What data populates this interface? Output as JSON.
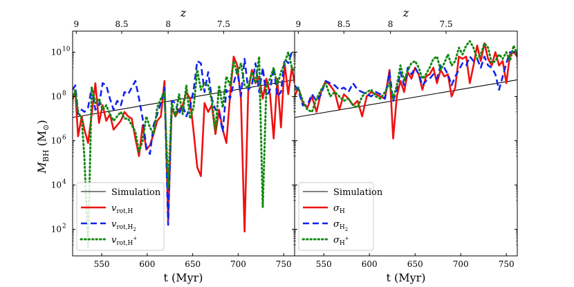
{
  "figure": {
    "ylabel_main": "M",
    "ylabel_sub": "BH",
    "ylabel_unit": "(M",
    "ylabel_unit_sub": "⊙",
    "ylabel_unit_close": ")"
  },
  "chart_data": [
    {
      "type": "line",
      "panel": "left",
      "xlabel": "t (Myr)",
      "ylabel": "M_BH (M_⊙)",
      "top_axis_label": "z",
      "xlim": [
        518,
        762
      ],
      "ylim_log10": [
        0.8,
        10.95
      ],
      "yscale": "log",
      "x_ticks": [
        550,
        600,
        650,
        700,
        750
      ],
      "y_ticks_log10": [
        2,
        4,
        6,
        8,
        10
      ],
      "y_tick_labels": [
        {
          "base": "10",
          "exp": "2"
        },
        {
          "base": "10",
          "exp": "4"
        },
        {
          "base": "10",
          "exp": "6"
        },
        {
          "base": "10",
          "exp": "8"
        },
        {
          "base": "10",
          "exp": "10"
        }
      ],
      "top_ticks": [
        {
          "label": "9",
          "t": 522
        },
        {
          "label": "8.5",
          "t": 572
        },
        {
          "label": "8",
          "t": 623
        },
        {
          "label": "7.5",
          "t": 684
        }
      ],
      "legend_position": "lower-left",
      "series": [
        {
          "name": "Simulation",
          "label_main": "Simulation",
          "label_sub": "",
          "label_sup": "",
          "color": "#000000",
          "style": "solid",
          "x": [
            518,
            762
          ],
          "log10_y": [
            7.05,
            8.75
          ]
        },
        {
          "name": "v_rot,H",
          "label_main": "v",
          "label_sub": "rot,H",
          "label_sup": "",
          "color": "#ee1111",
          "style": "solid",
          "x": [
            518,
            521,
            524,
            528,
            531,
            535,
            539,
            543,
            547,
            551,
            555,
            559,
            563,
            567,
            571,
            575,
            579,
            583,
            587,
            591,
            595,
            599,
            603,
            607,
            611,
            615,
            619,
            623,
            627,
            631,
            635,
            639,
            643,
            647,
            651,
            655,
            659,
            663,
            667,
            671,
            675,
            679,
            683,
            687,
            691,
            695,
            699,
            703,
            707,
            711,
            715,
            719,
            723,
            727,
            731,
            735,
            739,
            743,
            747,
            751,
            755,
            759,
            762
          ],
          "log10_y": [
            7.9,
            8.2,
            6.2,
            7.1,
            6.5,
            5.9,
            7.2,
            8.6,
            6.8,
            7.6,
            6.9,
            7.2,
            6.5,
            6.7,
            6.9,
            7.3,
            7.1,
            7.0,
            6.1,
            5.3,
            6.7,
            5.6,
            5.8,
            6.3,
            6.9,
            7.1,
            8.7,
            2.4,
            7.5,
            7.1,
            7.4,
            7.6,
            8.2,
            7.9,
            6.4,
            4.8,
            4.4,
            7.7,
            7.3,
            7.6,
            6.3,
            7.4,
            6.5,
            5.9,
            8.0,
            9.8,
            9.4,
            7.9,
            1.9,
            8.2,
            9.2,
            8.6,
            8.9,
            7.9,
            8.8,
            8.1,
            6.1,
            8.8,
            6.6,
            9.5,
            8.1,
            9.3,
            8.6
          ]
        },
        {
          "name": "v_rot,H2",
          "label_main": "v",
          "label_sub": "rot,H",
          "label_sup": "2",
          "color": "#1122ee",
          "style": "dashed",
          "x": [
            518,
            521,
            524,
            528,
            531,
            535,
            539,
            543,
            547,
            551,
            555,
            559,
            563,
            567,
            571,
            575,
            579,
            583,
            587,
            591,
            595,
            599,
            603,
            607,
            611,
            615,
            619,
            623,
            627,
            631,
            635,
            639,
            643,
            647,
            651,
            655,
            659,
            663,
            667,
            671,
            675,
            679,
            683,
            687,
            691,
            695,
            699,
            703,
            707,
            711,
            715,
            719,
            723,
            727,
            731,
            735,
            739,
            743,
            747,
            751,
            755,
            759,
            762
          ],
          "log10_y": [
            8.3,
            8.5,
            7.2,
            7.4,
            7.3,
            7.5,
            8.4,
            7.4,
            7.6,
            8.6,
            8.5,
            7.9,
            7.4,
            7.8,
            7.6,
            8.2,
            8.1,
            8.4,
            8.7,
            7.9,
            7.0,
            5.7,
            5.4,
            6.7,
            7.2,
            7.7,
            8.4,
            2.2,
            7.8,
            7.7,
            7.2,
            7.6,
            7.1,
            7.5,
            8.3,
            9.6,
            9.5,
            8.2,
            9.1,
            7.9,
            7.4,
            7.3,
            6.4,
            8.3,
            7.9,
            8.6,
            9.2,
            8.0,
            9.7,
            8.3,
            8.5,
            9.5,
            8.2,
            9.3,
            8.0,
            8.3,
            9.3,
            8.0,
            8.2,
            9.7,
            9.5,
            10.0,
            9.9
          ]
        },
        {
          "name": "v_rot,H+",
          "label_main": "v",
          "label_sub": "rot,H",
          "label_sup": "+",
          "color": "#118811",
          "style": "dotted",
          "x": [
            518,
            521,
            524,
            528,
            531,
            535,
            539,
            543,
            547,
            551,
            555,
            559,
            563,
            567,
            571,
            575,
            579,
            583,
            587,
            591,
            595,
            599,
            603,
            607,
            611,
            615,
            619,
            623,
            627,
            631,
            635,
            639,
            643,
            647,
            651,
            655,
            659,
            663,
            667,
            671,
            675,
            679,
            683,
            687,
            691,
            695,
            699,
            703,
            707,
            711,
            715,
            719,
            723,
            727,
            731,
            735,
            739,
            743,
            747,
            751,
            755,
            759,
            762
          ],
          "log10_y": [
            7.9,
            8.3,
            7.3,
            7.0,
            5.2,
            1.2,
            8.4,
            7.7,
            7.9,
            7.4,
            7.6,
            7.2,
            6.9,
            7.1,
            7.3,
            7.0,
            7.0,
            6.7,
            6.4,
            5.5,
            6.0,
            7.1,
            6.6,
            6.3,
            7.5,
            7.9,
            8.2,
            3.9,
            7.7,
            7.1,
            8.1,
            7.2,
            8.5,
            7.0,
            7.5,
            9.2,
            8.3,
            8.6,
            8.5,
            7.8,
            6.5,
            8.5,
            7.5,
            8.9,
            8.5,
            9.6,
            9.0,
            9.5,
            8.5,
            8.4,
            9.1,
            8.6,
            9.8,
            3.0,
            8.5,
            8.8,
            9.3,
            8.5,
            9.1,
            9.5,
            10.0,
            9.3,
            9.1
          ]
        }
      ]
    },
    {
      "type": "line",
      "panel": "right",
      "xlabel": "t (Myr)",
      "ylabel": "",
      "top_axis_label": "z",
      "xlim": [
        518,
        762
      ],
      "ylim_log10": [
        0.8,
        10.95
      ],
      "yscale": "log",
      "x_ticks": [
        550,
        600,
        650,
        700,
        750
      ],
      "y_ticks_log10": [
        2,
        4,
        6,
        8,
        10
      ],
      "top_ticks": [
        {
          "label": "9",
          "t": 522
        },
        {
          "label": "8.5",
          "t": 572
        },
        {
          "label": "8",
          "t": 623
        },
        {
          "label": "7.5",
          "t": 684
        }
      ],
      "legend_position": "lower-left",
      "series": [
        {
          "name": "Simulation",
          "label_main": "Simulation",
          "label_sub": "",
          "label_sup": "",
          "color": "#000000",
          "style": "solid",
          "x": [
            518,
            762
          ],
          "log10_y": [
            7.05,
            8.75
          ]
        },
        {
          "name": "sigma_H",
          "label_main": "σ",
          "label_sub": "H",
          "label_sup": "",
          "color": "#ee1111",
          "style": "solid",
          "x": [
            518,
            522,
            527,
            532,
            537,
            542,
            547,
            552,
            557,
            562,
            567,
            572,
            577,
            582,
            587,
            592,
            597,
            602,
            607,
            612,
            617,
            622,
            626,
            630,
            634,
            638,
            642,
            646,
            650,
            654,
            658,
            662,
            666,
            670,
            674,
            678,
            682,
            686,
            690,
            694,
            698,
            702,
            706,
            710,
            714,
            718,
            722,
            726,
            730,
            734,
            738,
            742,
            746,
            750,
            754,
            758,
            762
          ],
          "log10_y": [
            8.0,
            8.4,
            7.7,
            7.5,
            8.0,
            7.3,
            8.2,
            8.7,
            8.5,
            8.2,
            7.4,
            8.1,
            7.9,
            7.6,
            7.8,
            7.1,
            8.0,
            8.2,
            8.1,
            8.0,
            7.9,
            9.2,
            6.1,
            8.0,
            8.7,
            8.2,
            9.1,
            8.8,
            9.3,
            9.0,
            8.3,
            8.9,
            9.0,
            9.3,
            8.6,
            9.2,
            8.9,
            9.0,
            8.0,
            8.4,
            9.8,
            9.7,
            9.8,
            8.6,
            9.4,
            10.3,
            9.6,
            10.4,
            9.7,
            9.4,
            10.0,
            9.4,
            9.6,
            8.6,
            9.9,
            10.0,
            9.8
          ]
        },
        {
          "name": "sigma_H2",
          "label_main": "σ",
          "label_sub": "H",
          "label_sup": "2",
          "color": "#1122ee",
          "style": "dashed",
          "x": [
            518,
            522,
            527,
            532,
            537,
            542,
            547,
            552,
            557,
            562,
            567,
            572,
            577,
            582,
            587,
            592,
            597,
            602,
            607,
            612,
            617,
            622,
            626,
            630,
            634,
            638,
            642,
            646,
            650,
            654,
            658,
            662,
            666,
            670,
            674,
            678,
            682,
            686,
            690,
            694,
            698,
            702,
            706,
            710,
            714,
            718,
            722,
            726,
            730,
            734,
            738,
            742,
            746,
            750,
            754,
            758,
            762
          ],
          "log10_y": [
            8.5,
            8.3,
            7.6,
            7.6,
            8.1,
            7.8,
            8.1,
            8.7,
            8.6,
            8.5,
            8.3,
            8.4,
            8.2,
            8.6,
            8.3,
            8.2,
            8.1,
            8.0,
            8.2,
            8.1,
            7.9,
            9.1,
            7.8,
            8.3,
            9.1,
            8.5,
            9.3,
            9.0,
            9.3,
            9.0,
            8.5,
            8.7,
            8.8,
            9.0,
            8.8,
            9.4,
            9.3,
            9.0,
            8.5,
            8.9,
            9.2,
            9.5,
            9.4,
            9.8,
            9.6,
            9.7,
            9.3,
            9.8,
            9.4,
            9.3,
            9.0,
            8.3,
            8.9,
            9.5,
            10.0,
            10.0,
            10.1
          ]
        },
        {
          "name": "sigma_H+",
          "label_main": "σ",
          "label_sub": "H",
          "label_sup": "+",
          "color": "#118811",
          "style": "dotted",
          "x": [
            518,
            522,
            527,
            532,
            537,
            542,
            547,
            552,
            557,
            562,
            567,
            572,
            577,
            582,
            587,
            592,
            597,
            602,
            607,
            612,
            617,
            622,
            626,
            630,
            634,
            638,
            642,
            646,
            650,
            654,
            658,
            662,
            666,
            670,
            674,
            678,
            682,
            686,
            690,
            694,
            698,
            702,
            706,
            710,
            714,
            718,
            722,
            726,
            730,
            734,
            738,
            742,
            746,
            750,
            754,
            758,
            762
          ],
          "log10_y": [
            8.3,
            8.4,
            7.8,
            7.4,
            7.3,
            7.9,
            8.3,
            8.6,
            8.0,
            8.2,
            8.0,
            7.8,
            7.9,
            7.6,
            7.5,
            8.0,
            8.2,
            8.3,
            8.0,
            7.9,
            8.2,
            8.6,
            7.9,
            8.5,
            9.4,
            8.7,
            9.2,
            9.5,
            9.6,
            9.3,
            8.8,
            9.0,
            9.3,
            9.7,
            9.8,
            9.2,
            9.5,
            9.9,
            9.4,
            9.6,
            10.2,
            9.9,
            10.3,
            10.5,
            10.2,
            9.7,
            9.9,
            10.4,
            10.2,
            9.5,
            9.6,
            9.9,
            9.7,
            10.0,
            9.6,
            10.3,
            9.9
          ]
        }
      ]
    }
  ]
}
